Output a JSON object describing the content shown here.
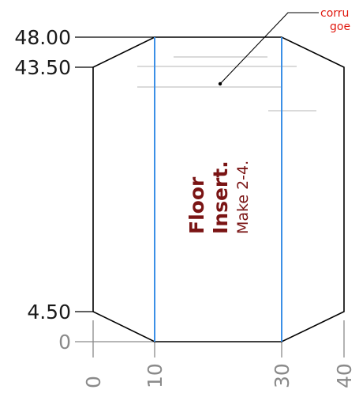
{
  "y_dimensions": [
    "48.00",
    "43.50",
    "4.50",
    "0"
  ],
  "x_dimensions": [
    "0",
    "10",
    "30",
    "40"
  ],
  "part": {
    "title_line1": "Floor",
    "title_line2": "Insert.",
    "quantity": "Make 2-4."
  },
  "annotation": {
    "line1": "corru",
    "line2": "goe"
  },
  "colors": {
    "outline": "#000000",
    "fold_lines": "#3b8fe6",
    "dimension_lines": "#8a8a8a",
    "scribble_lines": "#b5b5b5",
    "part_text": "#7a1414",
    "annotation_text": "#e0190f"
  }
}
